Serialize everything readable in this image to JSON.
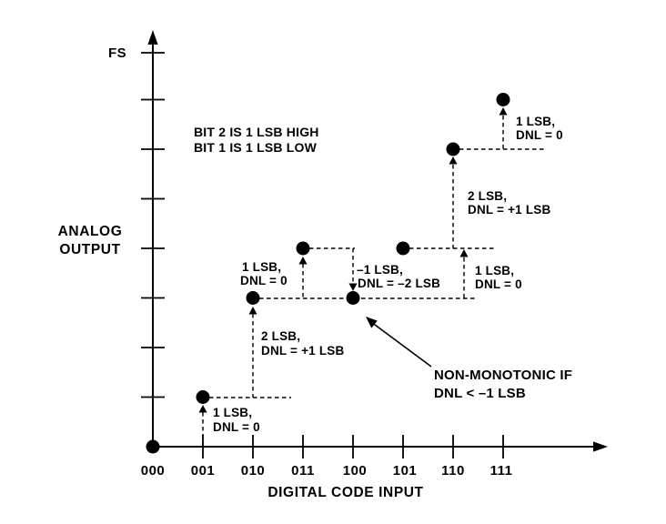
{
  "theme": {
    "ink": "#000000",
    "background": "#ffffff"
  },
  "chart_data": {
    "type": "scatter",
    "xlabel": "DIGITAL CODE INPUT",
    "ylabel_line1": "ANALOG",
    "ylabel_line2": "OUTPUT",
    "y_full_scale_label": "FS",
    "categories": [
      "000",
      "001",
      "010",
      "011",
      "100",
      "101",
      "110",
      "111"
    ],
    "values_lsb": [
      0,
      1,
      3,
      4,
      3,
      4,
      6,
      7
    ],
    "ylim_lsb": [
      0,
      8
    ],
    "grid": false,
    "legend": "none",
    "step_labels": [
      {
        "step": "000 to 001",
        "line1": "1 LSB,",
        "line2": "DNL = 0"
      },
      {
        "step": "001 to 010",
        "line1": "2 LSB,",
        "line2": "DNL = +1 LSB"
      },
      {
        "step": "010 to 011",
        "line1": "1 LSB,",
        "line2": "DNL = 0"
      },
      {
        "step": "011 to 100",
        "line1": "–1 LSB,",
        "line2": "DNL = –2 LSB"
      },
      {
        "step": "100 to 101",
        "line1": "1 LSB,",
        "line2": "DNL = 0"
      },
      {
        "step": "101 to 110",
        "line1": "2 LSB,",
        "line2": "DNL = +1 LSB"
      },
      {
        "step": "110 to 111",
        "line1": "1 LSB,",
        "line2": "DNL = 0"
      }
    ],
    "annotations": {
      "bit_error_note_line1": "BIT 2 IS 1 LSB HIGH",
      "bit_error_note_line2": "BIT 1 IS 1 LSB LOW",
      "warning_line1": "NON-MONOTONIC IF",
      "warning_line2": "DNL < –1 LSB"
    }
  }
}
